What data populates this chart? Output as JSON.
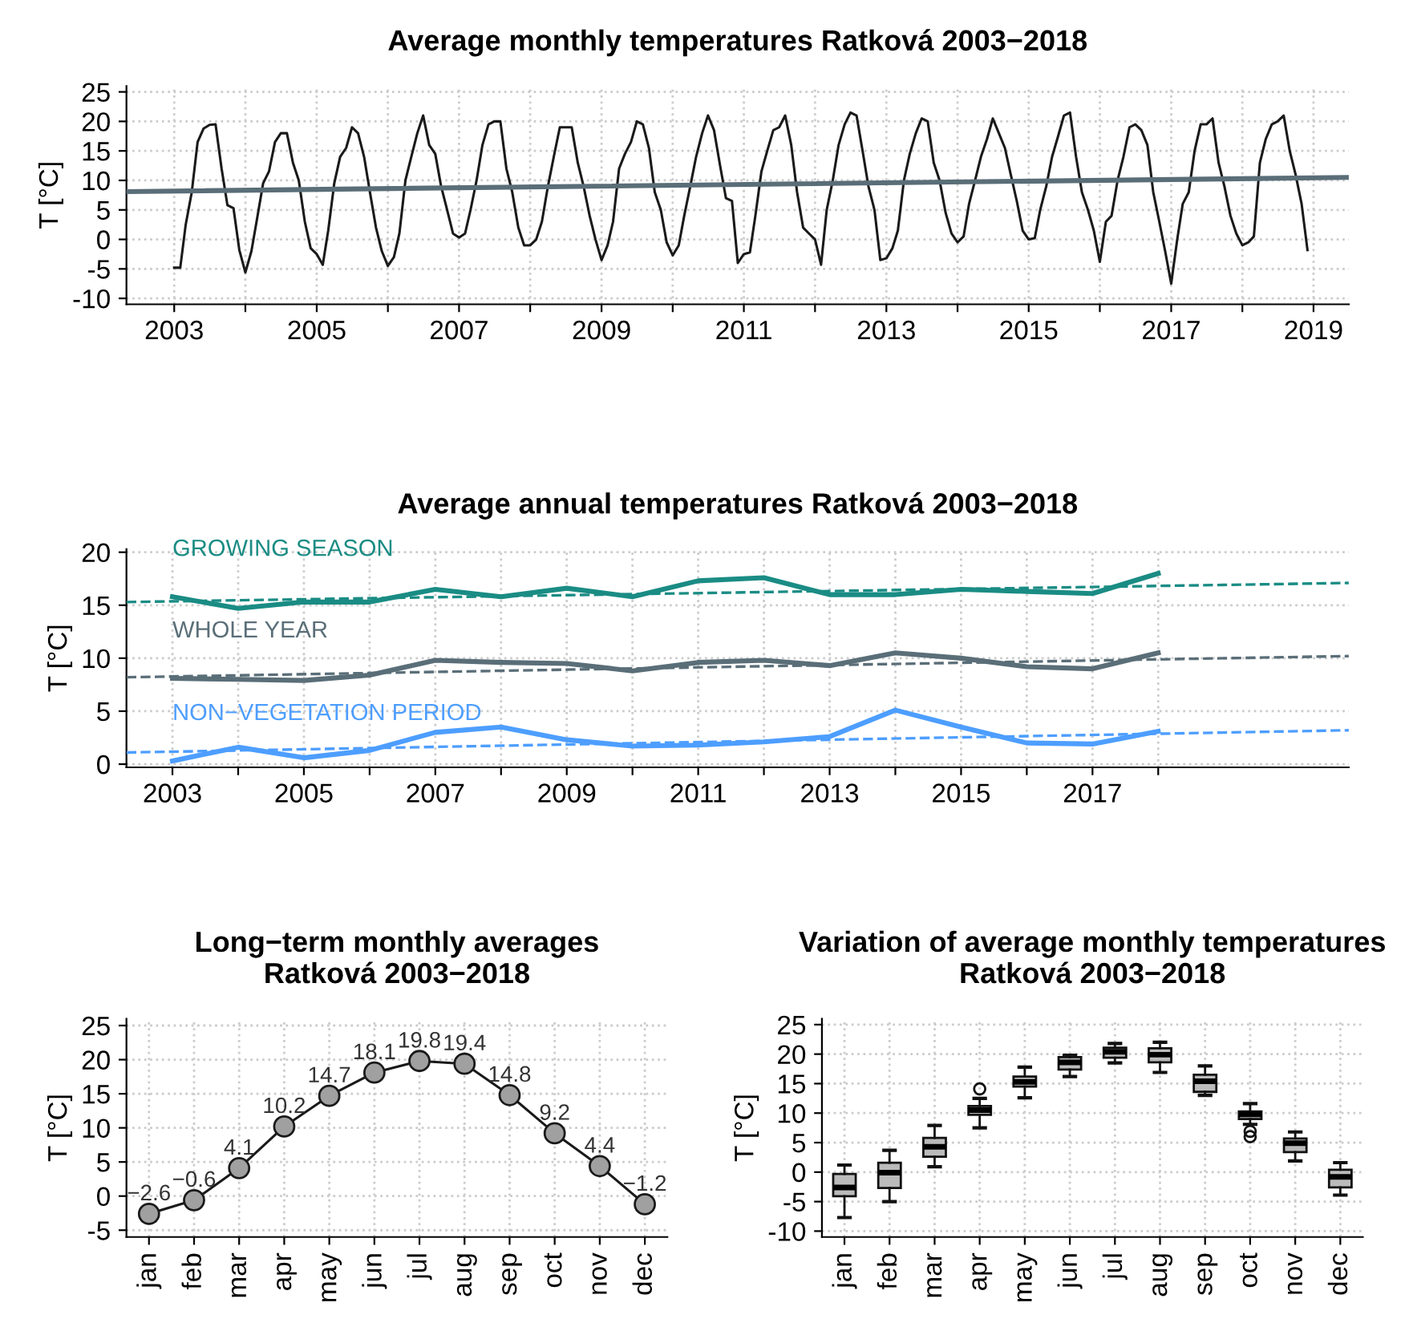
{
  "chart_data": [
    {
      "type": "line",
      "title": "Average monthly temperatures Ratková 2003−2018",
      "ylabel": "T [°C]",
      "grid": true,
      "marker": "none",
      "xlim": [
        "2002-05",
        "2019-07"
      ],
      "ylim": [
        -11,
        26
      ],
      "yticks": [
        -10,
        -5,
        0,
        5,
        10,
        15,
        20,
        25
      ],
      "xticks": [
        {
          "value": "2003-01",
          "label": "2003"
        },
        {
          "value": "2004-01",
          "label": null
        },
        {
          "value": "2005-01",
          "label": "2005"
        },
        {
          "value": "2006-01",
          "label": null
        },
        {
          "value": "2007-01",
          "label": "2007"
        },
        {
          "value": "2008-01",
          "label": null
        },
        {
          "value": "2009-01",
          "label": "2009"
        },
        {
          "value": "2010-01",
          "label": null
        },
        {
          "value": "2011-01",
          "label": "2011"
        },
        {
          "value": "2012-01",
          "label": null
        },
        {
          "value": "2013-01",
          "label": "2013"
        },
        {
          "value": "2014-01",
          "label": null
        },
        {
          "value": "2015-01",
          "label": "2015"
        },
        {
          "value": "2016-01",
          "label": null
        },
        {
          "value": "2017-01",
          "label": "2017"
        },
        {
          "value": "2018-01",
          "label": null
        },
        {
          "value": "2019-01",
          "label": "2019"
        }
      ],
      "series": [
        {
          "color": "#1a1a1a",
          "line_style": "solid",
          "x": [
            "2003-01",
            "2003-02",
            "2003-03",
            "2003-04",
            "2003-05",
            "2003-06",
            "2003-07",
            "2003-08",
            "2003-09",
            "2003-10",
            "2003-11",
            "2003-12",
            "2004-01",
            "2004-02",
            "2004-03",
            "2004-04",
            "2004-05",
            "2004-06",
            "2004-07",
            "2004-08",
            "2004-09",
            "2004-10",
            "2004-11",
            "2004-12",
            "2005-01",
            "2005-02",
            "2005-03",
            "2005-04",
            "2005-05",
            "2005-06",
            "2005-07",
            "2005-08",
            "2005-09",
            "2005-10",
            "2005-11",
            "2005-12",
            "2006-01",
            "2006-02",
            "2006-03",
            "2006-04",
            "2006-05",
            "2006-06",
            "2006-07",
            "2006-08",
            "2006-09",
            "2006-10",
            "2006-11",
            "2006-12",
            "2007-01",
            "2007-02",
            "2007-03",
            "2007-04",
            "2007-05",
            "2007-06",
            "2007-07",
            "2007-08",
            "2007-09",
            "2007-10",
            "2007-11",
            "2007-12",
            "2008-01",
            "2008-02",
            "2008-03",
            "2008-04",
            "2008-05",
            "2008-06",
            "2008-07",
            "2008-08",
            "2008-09",
            "2008-10",
            "2008-11",
            "2008-12",
            "2009-01",
            "2009-02",
            "2009-03",
            "2009-04",
            "2009-05",
            "2009-06",
            "2009-07",
            "2009-08",
            "2009-09",
            "2009-10",
            "2009-11",
            "2009-12",
            "2010-01",
            "2010-02",
            "2010-03",
            "2010-04",
            "2010-05",
            "2010-06",
            "2010-07",
            "2010-08",
            "2010-09",
            "2010-10",
            "2010-11",
            "2010-12",
            "2011-01",
            "2011-02",
            "2011-03",
            "2011-04",
            "2011-05",
            "2011-06",
            "2011-07",
            "2011-08",
            "2011-09",
            "2011-10",
            "2011-11",
            "2011-12",
            "2012-01",
            "2012-02",
            "2012-03",
            "2012-04",
            "2012-05",
            "2012-06",
            "2012-07",
            "2012-08",
            "2012-09",
            "2012-10",
            "2012-11",
            "2012-12",
            "2013-01",
            "2013-02",
            "2013-03",
            "2013-04",
            "2013-05",
            "2013-06",
            "2013-07",
            "2013-08",
            "2013-09",
            "2013-10",
            "2013-11",
            "2013-12",
            "2014-01",
            "2014-02",
            "2014-03",
            "2014-04",
            "2014-05",
            "2014-06",
            "2014-07",
            "2014-08",
            "2014-09",
            "2014-10",
            "2014-11",
            "2014-12",
            "2015-01",
            "2015-02",
            "2015-03",
            "2015-04",
            "2015-05",
            "2015-06",
            "2015-07",
            "2015-08",
            "2015-09",
            "2015-10",
            "2015-11",
            "2015-12",
            "2016-01",
            "2016-02",
            "2016-03",
            "2016-04",
            "2016-05",
            "2016-06",
            "2016-07",
            "2016-08",
            "2016-09",
            "2016-10",
            "2016-11",
            "2016-12",
            "2017-01",
            "2017-02",
            "2017-03",
            "2017-04",
            "2017-05",
            "2017-06",
            "2017-07",
            "2017-08",
            "2017-09",
            "2017-10",
            "2017-11",
            "2017-12",
            "2018-01",
            "2018-02",
            "2018-03",
            "2018-04",
            "2018-05",
            "2018-06",
            "2018-07",
            "2018-08",
            "2018-09",
            "2018-10",
            "2018-11",
            "2018-12"
          ],
          "values": [
            -4.8,
            -4.8,
            2.5,
            8,
            16.5,
            18.8,
            19.4,
            19.5,
            12,
            5.8,
            5.3,
            -1.8,
            -5.6,
            -2,
            3.5,
            9.5,
            11.5,
            16.5,
            18,
            18,
            13,
            10,
            3,
            -1.5,
            -2.5,
            -4.3,
            1.5,
            9.5,
            14,
            15.5,
            19,
            18,
            14,
            8,
            2,
            -2,
            -4.5,
            -3,
            1,
            10,
            14,
            18,
            21,
            16,
            14.5,
            9,
            5,
            1,
            0.3,
            1,
            5,
            10,
            16,
            19.5,
            20,
            20,
            12,
            8,
            2,
            -1,
            -1,
            0,
            3,
            9,
            14,
            19,
            19,
            19,
            13,
            9,
            4,
            0,
            -3.5,
            -1,
            3,
            12,
            14.5,
            16.5,
            20,
            19.5,
            15.5,
            8,
            5,
            -0.5,
            -2.7,
            -1,
            4,
            9,
            14,
            18,
            21,
            18.5,
            12.5,
            7,
            6.5,
            -4,
            -2.5,
            -2.2,
            4,
            11.5,
            15,
            18.5,
            19,
            21,
            16,
            8,
            2,
            1,
            0,
            -4.3,
            5,
            10,
            16,
            19.5,
            21.5,
            21,
            15,
            9,
            5,
            -3.5,
            -3.2,
            -1.5,
            1.5,
            10,
            14.5,
            18,
            20.5,
            20,
            13,
            10,
            4.5,
            1,
            -0.5,
            0.5,
            6,
            10,
            14,
            17,
            20.5,
            18,
            15.5,
            11,
            6.5,
            1.5,
            0,
            0.2,
            5,
            9,
            14,
            17.5,
            21,
            21.5,
            14,
            8,
            5,
            1.5,
            -3.8,
            3,
            4,
            10,
            14,
            19,
            19.5,
            18.5,
            16,
            8,
            3,
            -2,
            -7.5,
            0,
            6,
            8,
            15,
            19.5,
            19.5,
            20.5,
            13,
            9,
            4,
            1,
            -1,
            -0.5,
            0.5,
            13,
            17,
            19.5,
            20,
            21,
            15,
            11,
            6,
            -1.8
          ]
        },
        {
          "color": "#5a6e78",
          "line_style": "solid",
          "x": [
            "2002-05",
            "2019-07"
          ],
          "values": [
            8.1,
            10.5
          ]
        }
      ]
    },
    {
      "type": "line",
      "title": "Average annual temperatures Ratková 2003−2018",
      "ylabel": "T [°C]",
      "grid": true,
      "marker": "none",
      "xlim": [
        2002.3,
        2020.9
      ],
      "ylim": [
        -0.3,
        20.3
      ],
      "yticks": [
        0,
        5,
        10,
        15,
        20
      ],
      "xticks": [
        2003,
        {
          "value": 2004,
          "label": null
        },
        2005,
        {
          "value": 2006,
          "label": null
        },
        2007,
        {
          "value": 2008,
          "label": null
        },
        2009,
        {
          "value": 2010,
          "label": null
        },
        2011,
        {
          "value": 2012,
          "label": null
        },
        2013,
        {
          "value": 2014,
          "label": null
        },
        2015,
        {
          "value": 2016,
          "label": null
        },
        2017,
        {
          "value": 2018,
          "label": null
        }
      ],
      "series": [
        {
          "name": "GROWING SEASON",
          "color": "#1a8c84",
          "line_style": "solid",
          "x": [
            2003,
            2004,
            2005,
            2006,
            2007,
            2008,
            2009,
            2010,
            2011,
            2012,
            2013,
            2014,
            2015,
            2016,
            2017,
            2018
          ],
          "values": [
            15.8,
            14.7,
            15.3,
            15.3,
            16.5,
            15.8,
            16.6,
            15.8,
            17.3,
            17.6,
            16.0,
            16.0,
            16.5,
            16.3,
            16.1,
            18.0
          ]
        },
        {
          "name": "WHOLE YEAR",
          "color": "#5a6e78",
          "line_style": "solid",
          "x": [
            2003,
            2004,
            2005,
            2006,
            2007,
            2008,
            2009,
            2010,
            2011,
            2012,
            2013,
            2014,
            2015,
            2016,
            2017,
            2018
          ],
          "values": [
            8.1,
            8.0,
            7.9,
            8.4,
            9.8,
            9.6,
            9.5,
            8.8,
            9.6,
            9.8,
            9.3,
            10.5,
            10.0,
            9.2,
            9.0,
            10.5
          ]
        },
        {
          "name": "NON−VEGETATION PERIOD",
          "color": "#4d9eff",
          "line_style": "solid",
          "x": [
            2003,
            2004,
            2005,
            2006,
            2007,
            2008,
            2009,
            2010,
            2011,
            2012,
            2013,
            2014,
            2015,
            2016,
            2017,
            2018
          ],
          "values": [
            0.3,
            1.6,
            0.6,
            1.3,
            3.0,
            3.5,
            2.3,
            1.7,
            1.8,
            2.1,
            2.6,
            5.1,
            3.5,
            2.0,
            1.9,
            3.1
          ]
        },
        {
          "color": "#1a8c84",
          "line_style": "dashed",
          "x": [
            2002.3,
            2020.9
          ],
          "values": [
            15.3,
            17.1
          ]
        },
        {
          "color": "#5a6e78",
          "line_style": "dashed",
          "x": [
            2002.3,
            2020.9
          ],
          "values": [
            8.2,
            10.2
          ]
        },
        {
          "color": "#4d9eff",
          "line_style": "dashed",
          "x": [
            2002.3,
            2020.9
          ],
          "values": [
            1.1,
            3.2
          ]
        }
      ]
    },
    {
      "type": "line",
      "title": "Long−term monthly averages\nRatková 2003−2018",
      "ylabel": "T [°C]",
      "grid": true,
      "marker": "circle",
      "categories": [
        "jan",
        "feb",
        "mar",
        "apr",
        "may",
        "jun",
        "jul",
        "aug",
        "sep",
        "oct",
        "nov",
        "dec"
      ],
      "ylim": [
        -6,
        26
      ],
      "yticks": [
        -5,
        0,
        5,
        10,
        15,
        20,
        25
      ],
      "series": [
        {
          "color": "#1a1a1a",
          "line_style": "solid",
          "values": [
            -2.6,
            -0.6,
            4.1,
            10.2,
            14.7,
            18.1,
            19.8,
            19.4,
            14.8,
            9.2,
            4.4,
            -1.2
          ],
          "value_labels": [
            "−2.6",
            "−0.6",
            "4.1",
            "10.2",
            "14.7",
            "18.1",
            "19.8",
            "19.4",
            "14.8",
            "9.2",
            "4.4",
            "−1.2"
          ]
        }
      ]
    },
    {
      "type": "box",
      "title": "Variation of average monthly temperatures\nRatková 2003−2018",
      "ylabel": "T [°C]",
      "grid": true,
      "color": "#bbbbbb",
      "categories": [
        "jan",
        "feb",
        "mar",
        "apr",
        "may",
        "jun",
        "jul",
        "aug",
        "sep",
        "oct",
        "nov",
        "dec"
      ],
      "ylim": [
        -11,
        26
      ],
      "yticks": [
        -10,
        -5,
        0,
        5,
        10,
        15,
        20,
        25
      ],
      "boxes": [
        {
          "low": -7.7,
          "q1": -4.1,
          "median": -2.6,
          "q3": -0.3,
          "high": 1.2
        },
        {
          "low": -5.0,
          "q1": -2.7,
          "median": -0.1,
          "q3": 1.6,
          "high": 3.7
        },
        {
          "low": 0.9,
          "q1": 2.6,
          "median": 4.3,
          "q3": 5.8,
          "high": 7.9
        },
        {
          "low": 7.5,
          "q1": 9.7,
          "median": 10.5,
          "q3": 11.2,
          "high": 12.5,
          "outliers": [
            14.1
          ]
        },
        {
          "low": 12.6,
          "q1": 14.5,
          "median": 15.3,
          "q3": 16.2,
          "high": 17.8
        },
        {
          "low": 16.2,
          "q1": 17.4,
          "median": 18.6,
          "q3": 19.5,
          "high": 19.8
        },
        {
          "low": 18.5,
          "q1": 19.4,
          "median": 20.4,
          "q3": 21.1,
          "high": 21.8
        },
        {
          "low": 16.9,
          "q1": 18.6,
          "median": 19.9,
          "q3": 21.0,
          "high": 22.0
        },
        {
          "low": 13.0,
          "q1": 13.6,
          "median": 15.4,
          "q3": 16.5,
          "high": 18.0
        },
        {
          "low": 8.1,
          "q1": 9.0,
          "median": 9.8,
          "q3": 10.3,
          "high": 11.6,
          "outliers": [
            6.9,
            6.0
          ]
        },
        {
          "low": 1.9,
          "q1": 3.4,
          "median": 4.9,
          "q3": 5.7,
          "high": 6.8
        },
        {
          "low": -3.9,
          "q1": -2.6,
          "median": -0.8,
          "q3": 0.4,
          "high": 1.6
        }
      ]
    }
  ]
}
